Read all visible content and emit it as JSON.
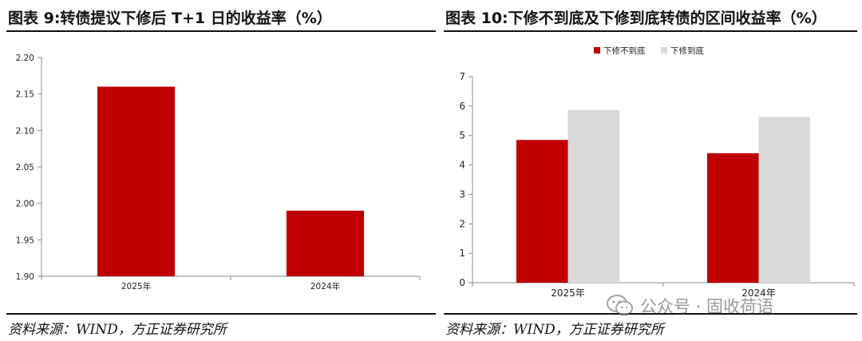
{
  "left": {
    "title": "图表 9:转债提议下修后 T+1 日的收益率（%）",
    "source": "资料来源：WIND，方正证券研究所"
  },
  "right": {
    "title": "图表 10:下修不到底及下修到底转债的区间收益率（%）",
    "source": "资料来源：WIND，方正证券研究所"
  },
  "watermark": {
    "icon": "wechat-icon",
    "text": "公众号 · 固收荷语"
  },
  "colors": {
    "red": "#C00000",
    "gray": "#D9D9D9"
  },
  "chart_data": [
    {
      "type": "bar",
      "title": "图表 9:转债提议下修后 T+1 日的收益率（%）",
      "categories": [
        "2025年",
        "2024年"
      ],
      "values": [
        2.16,
        1.99
      ],
      "ylim": [
        1.9,
        2.2
      ],
      "yticks": [
        "1.90",
        "1.95",
        "2.00",
        "2.05",
        "2.10",
        "2.15",
        "2.20"
      ],
      "grid": false,
      "legend": "none"
    },
    {
      "type": "bar",
      "title": "图表 10:下修不到底及下修到底转债的区间收益率（%）",
      "categories": [
        "2025年",
        "2024年"
      ],
      "series": [
        {
          "name": "下修不到底",
          "values": [
            4.85,
            4.4
          ],
          "color": "#C00000"
        },
        {
          "name": "下修到底",
          "values": [
            5.87,
            5.63
          ],
          "color": "#D9D9D9"
        }
      ],
      "ylim": [
        0,
        7
      ],
      "yticks": [
        "0",
        "1",
        "2",
        "3",
        "4",
        "5",
        "6",
        "7"
      ],
      "grid": false,
      "legend": "top"
    }
  ]
}
